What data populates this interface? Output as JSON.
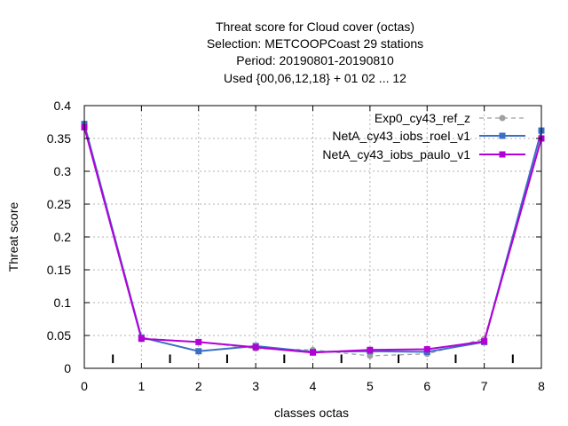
{
  "chart_data": {
    "type": "line",
    "title_lines": [
      "Threat score  for Cloud cover (octas)",
      "Selection: METCOOPCoast     29 stations",
      "Period: 20190801-20190810",
      "Used {00,06,12,18} + 01 02 ... 12"
    ],
    "xlabel": "classes octas",
    "ylabel": "Threat score",
    "xlim": [
      0,
      8
    ],
    "ylim": [
      0,
      0.4
    ],
    "xticks": [
      0,
      1,
      2,
      3,
      4,
      5,
      6,
      7,
      8
    ],
    "yticks": [
      0,
      0.05,
      0.1,
      0.15,
      0.2,
      0.25,
      0.3,
      0.35,
      0.4
    ],
    "xtick_labels": [
      "0",
      "1",
      "2",
      "3",
      "4",
      "5",
      "6",
      "7",
      "8"
    ],
    "ytick_labels": [
      "0",
      "0.05",
      "0.1",
      "0.15",
      "0.2",
      "0.25",
      "0.3",
      "0.35",
      "0.4"
    ],
    "grid": true,
    "legend_position": "top-right",
    "minor_marks_x": [
      0.5,
      1.5,
      2.5,
      3.5,
      4.5,
      5.5,
      6.5,
      7.5
    ],
    "x": [
      0,
      1,
      2,
      3,
      4,
      5,
      6,
      7,
      8
    ],
    "series": [
      {
        "name": "Exp0_cy43_ref_z",
        "color": "#a0a0a0",
        "dashed": true,
        "marker": "circle",
        "values": [
          0.37,
          0.046,
          0.04,
          0.03,
          0.028,
          0.019,
          0.022,
          0.045,
          0.35
        ]
      },
      {
        "name": "NetA_cy43_iobs_roel_v1",
        "color": "#3a6fc4",
        "dashed": false,
        "marker": "square",
        "values": [
          0.372,
          0.047,
          0.026,
          0.034,
          0.025,
          0.026,
          0.025,
          0.04,
          0.362
        ]
      },
      {
        "name": "NetA_cy43_iobs_paulo_v1",
        "color": "#b400d8",
        "dashed": false,
        "marker": "square",
        "values": [
          0.367,
          0.045,
          0.04,
          0.032,
          0.024,
          0.028,
          0.029,
          0.041,
          0.35
        ]
      }
    ]
  }
}
